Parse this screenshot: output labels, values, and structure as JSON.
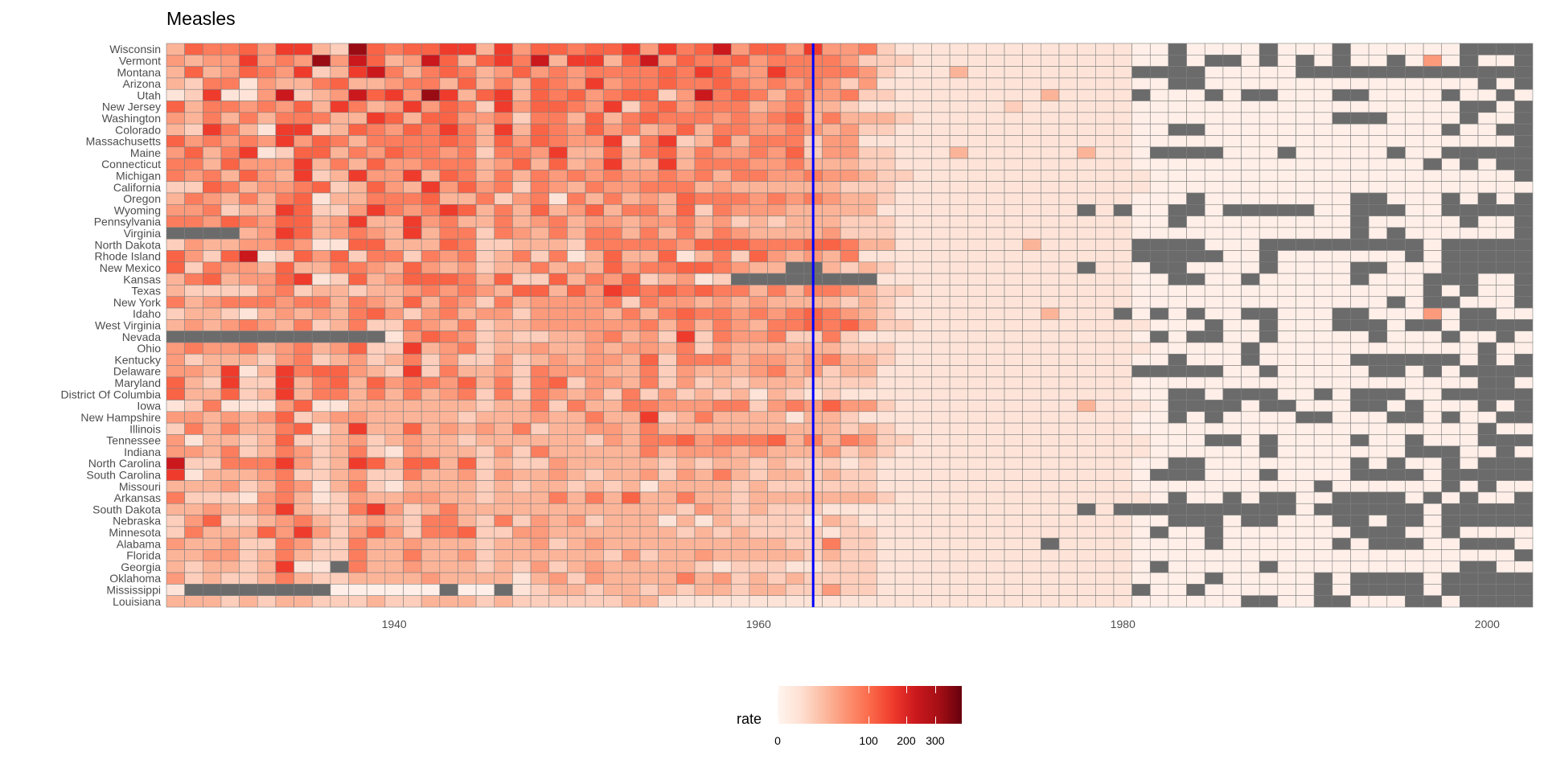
{
  "chart_data": {
    "type": "heatmap",
    "title": "Measles",
    "xlabel": "",
    "ylabel": "",
    "year_start": 1928,
    "year_end": 2002,
    "x_ticks": [
      1940,
      1960,
      1980,
      2000
    ],
    "x_tick_labels": [
      "1940",
      "1960",
      "1980",
      "2000"
    ],
    "grid": false,
    "na_symbol": ".",
    "na_color": "#6B6B6B",
    "cell_border_color": "#808080",
    "palette": [
      "#FFF5F0",
      "#FEE0D2",
      "#FCBBA1",
      "#FC9272",
      "#FB6A4A",
      "#EF3B2C",
      "#CB181D",
      "#A50F15",
      "#67000D"
    ],
    "level_rates": {
      "0": 0.5,
      "1": 4,
      "2": 14,
      "3": 30,
      "4": 50,
      "5": 80,
      "6": 110,
      "7": 160,
      "8": 230,
      "9": 330
    },
    "vline": {
      "year": 1963,
      "color": "#0000FF"
    },
    "legend": {
      "title": "rate",
      "position": "bottom",
      "transform": "sqrt",
      "limits": [
        0,
        410
      ],
      "ticks": [
        0,
        100,
        200,
        300
      ],
      "tick_labels": [
        "0",
        "100",
        "200",
        "300"
      ]
    },
    "states": [
      {
        "name": "Wisconsin",
        "levels": "3655647732965667737466566747568466474452111111111111100.0000.000.000000...."
      },
      {
        "name": "Vermont",
        "levels": "4344745494863486367583773684655645555422211111111111100.0..0.0.0.00.040.00."
      },
      {
        "name": "Montana",
        "levels": "36346547237853565346454555565764475555421113111111111....00000............."
      },
      {
        "name": "Arizona",
        "levels": "3255143356334553635365474556556545454241111111111111100..000000000000000.0."
      },
      {
        "name": "Utah",
        "levels": "12711482348674973673656456624856535445221111111131111.000.0..000..0000.00.0"
      },
      {
        "name": "New Jersey",
        "levels": "63554546375347465274665472564555345332111111112111111000000000000000000..0."
      },
      {
        "name": "Washington",
        "levels": "4353535553376366445255363565554545635333211111111111100000000000...0000.00."
      },
      {
        "name": "Colorado",
        "levels": "3275317723654657537365464534635544543422111111111111100..0000000000000.00.."
      },
      {
        "name": "Massachusetts",
        "levels": "64545474653555565364654472572363555244111111111111111000000000000000000000."
      },
      {
        "name": "Maine",
        "levels": "463571266354655452554733635635445462442211131111113110....000.00000.00....."
      },
      {
        "name": "Connecticut",
        "levels": "553644473536445553463634733735554453332211111111111110000000000000000.0.0."
      },
      {
        "name": "Michigan",
        "levels": "54536437237447365353545454454535544544322111111111111100000000000000000000.."
      },
      {
        "name": "California",
        "levels": "2265344562364374645254354455534333333222111111111111110000000000000000000000"
      },
      {
        "name": "Oregon",
        "levels": "35435356133555633524515353436555454543321111111111111000.00000000..000.0.0."
      },
      {
        "name": "Wyoming",
        "levels": "44523376224754576353634635536254443333311111111111.1.00..0.....00...00....."
      },
      {
        "name": "Pennsylvania",
        "levels": "5546546634733745335345344344534232333222111111111111100.000000000.00000.00."
      },
      {
        "name": "Virginia",
        "levels": "....3476345437355254353553535354333342221111111111111000000000000.0.000000."
      },
      {
        "name": "North Dakota",
        "levels": "24334454116633365223332555554666555665331111111311111....000.........0....."
      },
      {
        "name": "Rhode Island",
        "levels": "64268126462552545235251363361352643435111111111111111.....00.0000000.0....."
      },
      {
        "name": "New Mexico",
        "levels": "6254436335543643423353436455665433..32321111111111.110..0000.0000..000....."
      },
      {
        "name": "Kansas",
        "levels": "3563446712634666536226354623412........1111111111111100..00.00000.000...00."
      },
      {
        "name": "Texas",
        "levels": "322224523323345454366364765656553535543221111111111110000000000000000.0.00"
      },
      {
        "name": "New York",
        "levels": "5345554553543635425344445254434343333232111111111111100000000000000.0..000"
      },
      {
        "name": "Idaho",
        "levels": "2332134343564245344244443535655454565432111111113111.0.0.00..000..00040..00"
      },
      {
        "name": "West Virginia",
        "levels": "343454352352254352334444445353543556564221111111111111000.00.000...0..0....."
      },
      {
        "name": "Nevada",
        "levels": "............146542322334534272544522521111111111111110.0..00.00000.000.00.0"
      },
      {
        "name": "Ohio",
        "levels": "45445345346227345233433434435243333332221111111111111100000.000000000000.000"
      },
      {
        "name": "Kentucky",
        "levels": "4233324523423524224234344362555344345332111111111111100.000.00000......0.0."
      },
      {
        "name": "Delaware",
        "levels": "44371375664327253342544433524333453423311111111111111.....00.00000..0.0...."
      },
      {
        "name": "Maryland",
        "levels": "632722735636455463525624435242323332222111111111111110000000000000000000..0."
      },
      {
        "name": "District Of Columbia",
        "levels": "6336237355353534525254342524232313212111111111111111100..0...00.0...00....."
      },
      {
        "name": "Iowa",
        "levels": "1251114611333333323352533554445524546442111111111131110....0..000..0.000.0.."
      },
      {
        "name": "New Hampshire",
        "levels": "4434346234433333233343353372353333133211111111111111100.0.0000..000..0.00.."
      },
      {
        "name": "Illinois",
        "levels": "253533561373363434352334435333333333323211111111111110000000000000000000.00."
      },
      {
        "name": "Tennessee",
        "levels": "413323622342343323333332435564555635354221111111111111000..0.0000.00.000...."
      },
      {
        "name": "Indiana",
        "levels": "443523542352143332425333335344434333423211111111111111000000.0000000...00.00"
      },
      {
        "name": "North Carolina",
        "levels": "8225557423763663623224333332323323222121111111111111100..00000000.0.00.0..."
      },
      {
        "name": "South Carolina",
        "levels": "713334522342253342433432334243532332322111111111111110...000.0000....0....."
      },
      {
        "name": "Missouri",
        "levels": "333423541352133332323323231333323222222111111111111110000000000.000000.0.00"
      },
      {
        "name": "Arkansas",
        "levels": "5222145312433443323335353633533233333332111111111111110.00.0..00....0.0.00.."
      },
      {
        "name": "South Dakota",
        "levels": "33433473225742353333333333332432322211111111111111.1..........0......0....."
      },
      {
        "name": "Nebraska",
        "levels": "2462234532343255325243423331313222213211111111111111100...0..000..0..0....."
      },
      {
        "name": "Minnesota",
        "levels": "253336474246425562244333333323232222122111111111111110.00.0000000...00.0000"
      },
      {
        "name": "Alabama",
        "levels": "433422542253343332334234333333333322522111111111.11110000.000000.0...00...0"
      },
      {
        "name": "Florida",
        "levels": "33442353225335334233333324233433333232211111111111111000000000000000000000.0"
      },
      {
        "name": "Georgia",
        "levels": "323323711.53343332324234333332122211222111111111111110.00000.0000000000..00"
      },
      {
        "name": "Oklahoma",
        "levels": "423223532233334333313424333353423232222111111111111110000.00000.0....0....."
      },
      {
        "name": "Mississippi",
        "levels": "1........000000.00.1233233232332332242211111111111111.00.000000.0....0....."
      },
      {
        "name": "Louisiana",
        "levels": "33323233222322333232222223311111111111111111111111111000000..00..000..0...."
      }
    ]
  }
}
